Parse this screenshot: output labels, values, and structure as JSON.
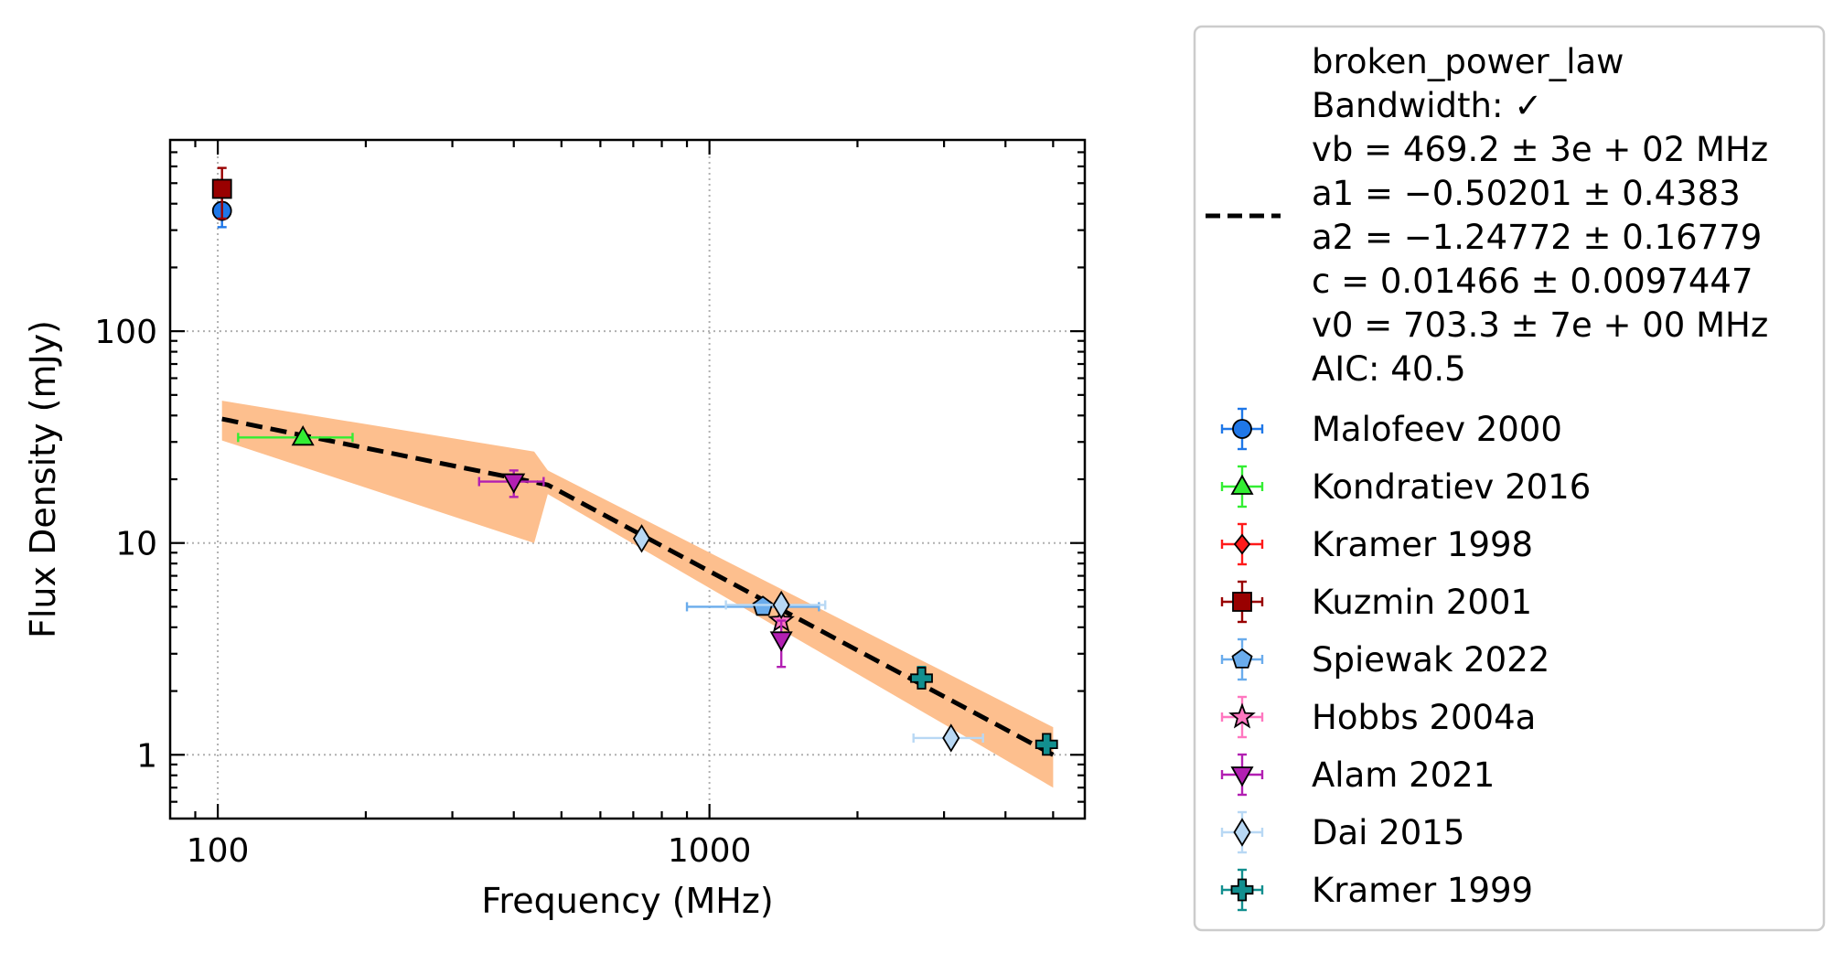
{
  "chart_data": {
    "type": "scatter",
    "xlabel": "Frequency (MHz)",
    "ylabel": "Flux Density (mJy)",
    "xscale": "log",
    "yscale": "log",
    "xlim": [
      80,
      5800
    ],
    "ylim": [
      0.5,
      800
    ],
    "x_ticks": [
      {
        "value": 100,
        "label": "100"
      },
      {
        "value": 1000,
        "label": "1000"
      }
    ],
    "y_ticks": [
      {
        "value": 1,
        "label": "1"
      },
      {
        "value": 10,
        "label": "10"
      },
      {
        "value": 100,
        "label": "100"
      }
    ],
    "grid": true,
    "legend_position": "outside-right",
    "fit": {
      "label_lines": [
        "broken_power_law",
        "Bandwidth: ✓",
        "vb = 469.2 ± 3e + 02 MHz",
        "a1 = −0.50201 ± 0.4383",
        "a2 = −1.24772 ± 0.16779",
        "c = 0.01466 ± 0.0097447",
        "v0 = 703.3 ± 7e + 00 MHz",
        "AIC: 40.5"
      ],
      "line_color": "#000000",
      "band_color": "#fdbf8e",
      "curve": [
        [
          102,
          38.5
        ],
        [
          469,
          18.8
        ],
        [
          5000,
          1.0
        ]
      ],
      "band_upper": [
        [
          102,
          47
        ],
        [
          440,
          27
        ],
        [
          469,
          22
        ],
        [
          5000,
          1.35
        ]
      ],
      "band_lower": [
        [
          102,
          30.5
        ],
        [
          440,
          10
        ],
        [
          469,
          17
        ],
        [
          5000,
          0.7
        ]
      ]
    },
    "series": [
      {
        "name": "Malofeev 2000",
        "marker": "circle",
        "color": "#1f77e8",
        "points": [
          {
            "x": 102,
            "y": 370,
            "ylo": 310,
            "yhi": 430
          }
        ]
      },
      {
        "name": "Kondratiev 2016",
        "marker": "triangle-up",
        "color": "#33ee33",
        "points": [
          {
            "x": 149,
            "y": 31.5,
            "xlo": 110,
            "xhi": 188
          }
        ]
      },
      {
        "name": "Kramer 1998",
        "marker": "diamond-small",
        "color": "#ff1a1a",
        "points": []
      },
      {
        "name": "Kuzmin 2001",
        "marker": "square",
        "color": "#990000",
        "points": [
          {
            "x": 102,
            "y": 470,
            "ylo": 340,
            "yhi": 590
          }
        ]
      },
      {
        "name": "Spiewak 2022",
        "marker": "pentagon",
        "color": "#6aacec",
        "points": [
          {
            "x": 1284,
            "y": 5.0,
            "xlo": 900,
            "xhi": 1670
          }
        ]
      },
      {
        "name": "Hobbs 2004a",
        "marker": "star",
        "color": "#ff77c0",
        "points": [
          {
            "x": 1400,
            "y": 4.3
          }
        ]
      },
      {
        "name": "Alam 2021",
        "marker": "triangle-down",
        "color": "#b21fb2",
        "points": [
          {
            "x": 400,
            "y": 19.5,
            "ylo": 16.5,
            "yhi": 22,
            "xlo": 340,
            "xhi": 460
          },
          {
            "x": 1400,
            "y": 3.5,
            "ylo": 2.6,
            "yhi": 4.3
          }
        ]
      },
      {
        "name": "Dai 2015",
        "marker": "diamond",
        "color": "#b8d8f4",
        "points": [
          {
            "x": 728,
            "y": 10.5
          },
          {
            "x": 1400,
            "y": 5.1,
            "xlo": 1080,
            "xhi": 1720
          },
          {
            "x": 3100,
            "y": 1.2,
            "xlo": 2600,
            "xhi": 3600
          }
        ]
      },
      {
        "name": "Kramer 1999",
        "marker": "plus",
        "color": "#128f8f",
        "points": [
          {
            "x": 2700,
            "y": 2.3,
            "ylo": 2.1,
            "yhi": 2.6
          },
          {
            "x": 4850,
            "y": 1.12
          }
        ]
      }
    ]
  }
}
